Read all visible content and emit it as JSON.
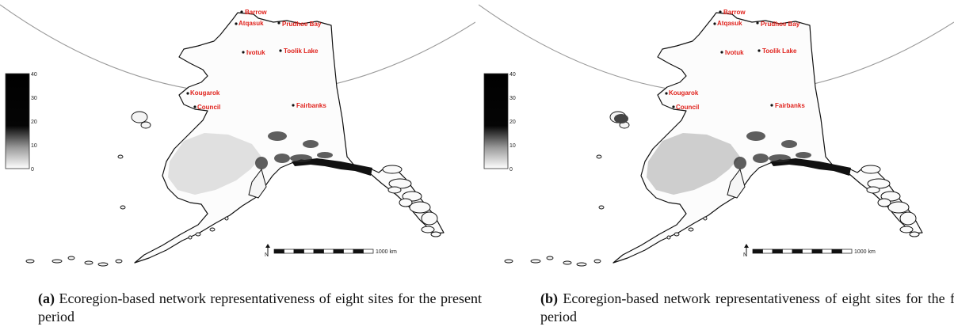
{
  "panels": [
    {
      "id": "a",
      "caption_tag": "(a)",
      "caption_text": "Ecoregion-based network representativeness of eight sites for the present period",
      "shading_level": 0.25
    },
    {
      "id": "b",
      "caption_tag": "(b)",
      "caption_text": "Ecoregion-based network representativeness of eight sites for the future period",
      "shading_level": 0.55
    }
  ],
  "sites": [
    "Barrow",
    "Atqasuk",
    "Prudhoe Bay",
    "Ivotuk",
    "Toolik Lake",
    "Kougarok",
    "Council",
    "Fairbanks"
  ],
  "colorbar": {
    "ticks": [
      "40",
      "30",
      "20",
      "10",
      "0"
    ],
    "min": 0,
    "max": 40
  },
  "scalebar": {
    "label": "1000 km"
  },
  "north_arrow": "N",
  "colors": {
    "site_label": "#e0221c",
    "land_fill": "#ffffff",
    "coast": "#111111"
  }
}
